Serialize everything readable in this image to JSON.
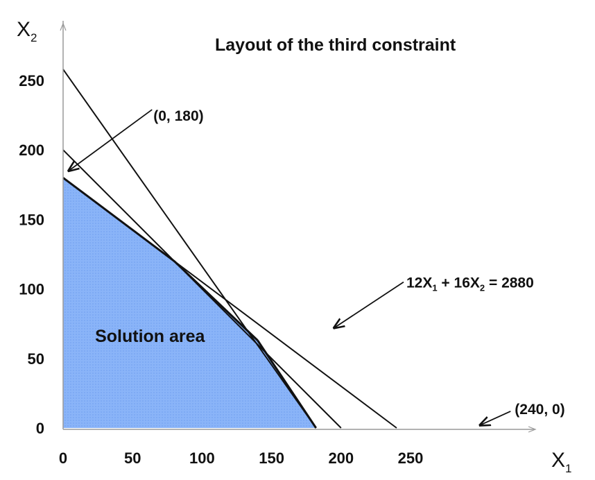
{
  "chart_data": {
    "type": "line",
    "title": "Layout of the third constraint",
    "xlabel": {
      "main": "X",
      "sub": "1"
    },
    "ylabel": {
      "main": "X",
      "sub": "2"
    },
    "xlim": [
      0,
      270
    ],
    "ylim": [
      0,
      270
    ],
    "x_ticks": [
      0,
      50,
      100,
      150,
      200,
      250
    ],
    "y_ticks": [
      0,
      50,
      100,
      150,
      200,
      250
    ],
    "grid": false,
    "lines": [
      {
        "id": "constraint-a",
        "points": [
          [
            0,
            180
          ],
          [
            240,
            0
          ]
        ]
      },
      {
        "id": "constraint-b",
        "points": [
          [
            0,
            200
          ],
          [
            200,
            0
          ]
        ]
      },
      {
        "id": "constraint-c",
        "points": [
          [
            0,
            258
          ],
          [
            182,
            0
          ]
        ]
      }
    ],
    "solution_area": {
      "label": "Solution area",
      "label_at": [
        23,
        62
      ],
      "color": "#8ab4f8",
      "vertices": [
        [
          0,
          0
        ],
        [
          0,
          180
        ],
        [
          80,
          120
        ],
        [
          140,
          63
        ],
        [
          182,
          0
        ]
      ]
    },
    "annotations": [
      {
        "text": "(0, 180)",
        "text_at": [
          65,
          225
        ],
        "arrow_from": [
          64,
          229
        ],
        "arrow_to": [
          4,
          185
        ]
      },
      {
        "text_parts": [
          "12X",
          "1",
          " + 16X",
          "2",
          " = 2880"
        ],
        "text_at": [
          247,
          105
        ],
        "arrow_from": [
          245,
          105
        ],
        "arrow_to": [
          195,
          72
        ]
      },
      {
        "text": "(240, 0)",
        "text_at": [
          325,
          14
        ],
        "arrow_from": [
          322,
          12
        ],
        "arrow_to": [
          300,
          2
        ]
      }
    ]
  }
}
